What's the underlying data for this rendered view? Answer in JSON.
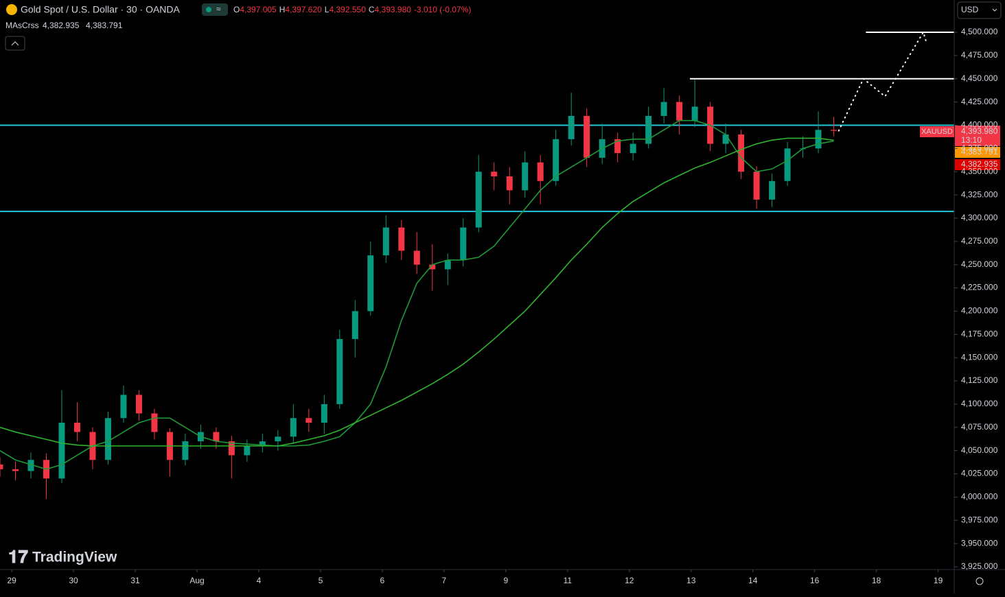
{
  "header": {
    "symbol": "Gold Spot / U.S. Dollar · 30 · OANDA",
    "ohlc": [
      {
        "label": "O",
        "value": "4,397.005"
      },
      {
        "label": "H",
        "value": "4,397.620"
      },
      {
        "label": "L",
        "value": "4,392.550"
      },
      {
        "label": "C",
        "value": "4,393.980"
      }
    ],
    "change": "-3.010 (-0.07%)",
    "indicator": {
      "name": "MAsCrss",
      "fast": "4,382.935",
      "slow": "4,383.791"
    },
    "currency": "USD",
    "logo": "TradingView",
    "price_tags": {
      "ticker": "XAUUSD",
      "last": "4,393.980",
      "countdown": "13:10",
      "slow": "4,383.791",
      "fast": "4,382.935"
    }
  },
  "chart_data": {
    "type": "candlestick",
    "x": [
      -0.19,
      0.06,
      0.31,
      0.56,
      0.81,
      1.06,
      1.31,
      1.56,
      1.81,
      2.06,
      2.31,
      2.56,
      2.81,
      3.06,
      3.31,
      3.56,
      3.81,
      4.06,
      4.31,
      4.56,
      4.81,
      5.06,
      5.31,
      5.56,
      5.81,
      6.06,
      6.31,
      6.56,
      6.81,
      7.06,
      7.31,
      7.56,
      7.81,
      8.06,
      8.31,
      8.56,
      8.81,
      9.06,
      9.31,
      9.56,
      9.81,
      10.06,
      10.31,
      10.56,
      10.81,
      11.06,
      11.31,
      11.56,
      11.81,
      12.06,
      12.31,
      12.56,
      12.81,
      13.06,
      13.31
    ],
    "open": [
      4035,
      4030,
      4028,
      4040,
      4020,
      4080,
      4070,
      4040,
      4085,
      4110,
      4090,
      4070,
      4040,
      4060,
      4070,
      4060,
      4045,
      4055,
      4060,
      4065,
      4085,
      4080,
      4100,
      4170,
      4200,
      4260,
      4290,
      4265,
      4250,
      4245,
      4255,
      4290,
      4350,
      4345,
      4330,
      4360,
      4340,
      4385,
      4410,
      4365,
      4385,
      4370,
      4380,
      4410,
      4425,
      4405,
      4420,
      4380,
      4390,
      4350,
      4320,
      4340,
      4375,
      4375,
      4395
    ],
    "high": [
      4043,
      4038,
      4048,
      4047,
      4115,
      4102,
      4075,
      4092,
      4120,
      4115,
      4095,
      4074,
      4068,
      4078,
      4075,
      4066,
      4062,
      4068,
      4072,
      4100,
      4095,
      4110,
      4180,
      4212,
      4275,
      4303,
      4298,
      4285,
      4272,
      4262,
      4300,
      4368,
      4360,
      4355,
      4372,
      4368,
      4395,
      4435,
      4418,
      4402,
      4392,
      4392,
      4420,
      4440,
      4432,
      4449,
      4425,
      4402,
      4395,
      4356,
      4348,
      4382,
      4388,
      4415,
      4409
    ],
    "low": [
      4022,
      4018,
      4020,
      3998,
      4015,
      4060,
      4030,
      4035,
      4080,
      4082,
      4062,
      4022,
      4034,
      4052,
      4052,
      4020,
      4038,
      4048,
      4050,
      4058,
      4070,
      4068,
      4095,
      4150,
      4195,
      4252,
      4255,
      4240,
      4222,
      4228,
      4248,
      4285,
      4330,
      4315,
      4322,
      4315,
      4335,
      4378,
      4355,
      4358,
      4360,
      4362,
      4375,
      4402,
      4390,
      4398,
      4372,
      4370,
      4342,
      4310,
      4312,
      4335,
      4365,
      4370,
      4388
    ],
    "close": [
      4030,
      4028,
      4040,
      4020,
      4080,
      4070,
      4040,
      4085,
      4110,
      4090,
      4070,
      4040,
      4060,
      4070,
      4060,
      4045,
      4055,
      4060,
      4065,
      4085,
      4080,
      4100,
      4170,
      4200,
      4260,
      4290,
      4265,
      4250,
      4245,
      4255,
      4290,
      4350,
      4345,
      4330,
      4360,
      4340,
      4385,
      4410,
      4365,
      4385,
      4370,
      4380,
      4410,
      4425,
      4405,
      4420,
      4380,
      4390,
      4350,
      4320,
      4340,
      4375,
      4375,
      4395,
      4393.98
    ],
    "up_color": "#089981",
    "down_color": "#f23645",
    "lines": [
      {
        "color": "#1e9b3a",
        "values": [
          4050,
          4040,
          4035,
          4030,
          4035,
          4045,
          4055,
          4060,
          4070,
          4080,
          4085,
          4085,
          4075,
          4065,
          4060,
          4058,
          4057,
          4056,
          4055,
          4055,
          4056,
          4060,
          4065,
          4080,
          4100,
          4140,
          4190,
          4230,
          4250,
          4255,
          4255,
          4258,
          4270,
          4290,
          4310,
          4330,
          4345,
          4355,
          4365,
          4375,
          4383,
          4385,
          4385,
          4395,
          4405,
          4405,
          4400,
          4390,
          4365,
          4350,
          4353,
          4362,
          4375,
          4380,
          4382.935
        ]
      },
      {
        "color": "#2fb52f",
        "values": [
          4075,
          4070,
          4066,
          4062,
          4058,
          4056,
          4055,
          4055,
          4055,
          4055,
          4055,
          4055,
          4055,
          4055,
          4055,
          4055,
          4055,
          4055,
          4055,
          4058,
          4062,
          4066,
          4072,
          4080,
          4088,
          4096,
          4104,
          4113,
          4122,
          4132,
          4143,
          4156,
          4170,
          4185,
          4200,
          4218,
          4236,
          4255,
          4272,
          4290,
          4305,
          4318,
          4328,
          4338,
          4346,
          4354,
          4360,
          4367,
          4374,
          4380,
          4384,
          4386,
          4386,
          4386,
          4383.791
        ]
      }
    ],
    "hlines": [
      {
        "value": 4400,
        "color": "#26c6da"
      },
      {
        "value": 4307.3,
        "color": "#26c6da"
      },
      {
        "value": 4450,
        "color": "#ffffff",
        "from": 10.98
      },
      {
        "value": 4500,
        "color": "#ffffff",
        "from": 13.83
      }
    ],
    "projection": {
      "color": "#ffffff",
      "x": [
        13.39,
        13.79,
        14.14,
        14.76,
        14.81
      ],
      "values": [
        4394,
        4450,
        4431,
        4500,
        4489
      ]
    },
    "xlim": [
      -0.19,
      15.26
    ],
    "ylim": [
      3922.05,
      4534.7
    ],
    "xticks": [
      {
        "value": 0,
        "label": "29"
      },
      {
        "value": 1,
        "label": "30"
      },
      {
        "value": 2,
        "label": "31"
      },
      {
        "value": 3,
        "label": "Aug"
      },
      {
        "value": 4,
        "label": "4"
      },
      {
        "value": 5,
        "label": "5"
      },
      {
        "value": 6,
        "label": "6"
      },
      {
        "value": 7,
        "label": "7"
      },
      {
        "value": 8,
        "label": "9"
      },
      {
        "value": 9,
        "label": "11"
      },
      {
        "value": 10,
        "label": "12"
      },
      {
        "value": 11,
        "label": "13"
      },
      {
        "value": 12,
        "label": "14"
      },
      {
        "value": 13,
        "label": "16"
      },
      {
        "value": 14,
        "label": "18"
      },
      {
        "value": 15,
        "label": "19"
      }
    ],
    "yticks": [
      {
        "value": 3925,
        "label": "3,925.000"
      },
      {
        "value": 3950,
        "label": "3,950.000"
      },
      {
        "value": 3975,
        "label": "3,975.000"
      },
      {
        "value": 4000,
        "label": "4,000.000"
      },
      {
        "value": 4025,
        "label": "4,025.000"
      },
      {
        "value": 4050,
        "label": "4,050.000"
      },
      {
        "value": 4075,
        "label": "4,075.000"
      },
      {
        "value": 4100,
        "label": "4,100.000"
      },
      {
        "value": 4125,
        "label": "4,125.000"
      },
      {
        "value": 4150,
        "label": "4,150.000"
      },
      {
        "value": 4175,
        "label": "4,175.000"
      },
      {
        "value": 4200,
        "label": "4,200.000"
      },
      {
        "value": 4225,
        "label": "4,225.000"
      },
      {
        "value": 4250,
        "label": "4,250.000"
      },
      {
        "value": 4275,
        "label": "4,275.000"
      },
      {
        "value": 4300,
        "label": "4,300.000"
      },
      {
        "value": 4325,
        "label": "4,325.000"
      },
      {
        "value": 4350,
        "label": "4,350.000"
      },
      {
        "value": 4375,
        "label": "4,375.000"
      },
      {
        "value": 4400,
        "label": "4,400.000"
      },
      {
        "value": 4425,
        "label": "4,425.000"
      },
      {
        "value": 4450,
        "label": "4,450.000"
      },
      {
        "value": 4475,
        "label": "4,475.000"
      },
      {
        "value": 4500,
        "label": "4,500.000"
      }
    ],
    "grid": false
  }
}
